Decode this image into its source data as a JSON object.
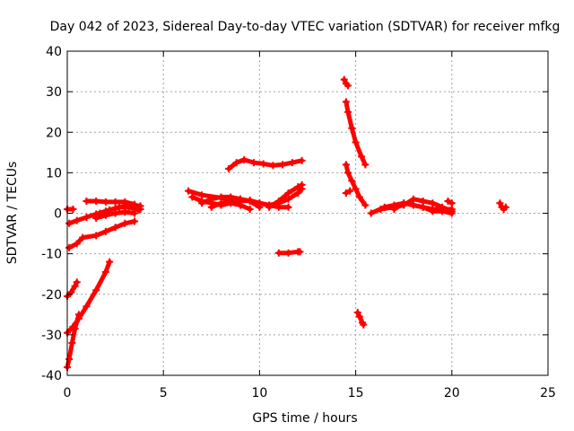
{
  "chart_data": {
    "type": "scatter",
    "title": "Day 042 of 2023, Sidereal Day-to-day VTEC variation (SDTVAR) for receiver mfkg",
    "xlabel": "GPS time / hours",
    "ylabel": "SDTVAR / TECUs",
    "xlim": [
      0,
      25
    ],
    "ylim": [
      -40,
      40
    ],
    "xticks": [
      0,
      5,
      10,
      15,
      20,
      25
    ],
    "yticks": [
      -40,
      -30,
      -20,
      -10,
      0,
      10,
      20,
      30,
      40
    ],
    "grid": true,
    "marker_color": "#ff0000",
    "series": [
      {
        "name": "s1",
        "points": [
          [
            0.0,
            1.0
          ],
          [
            0.3,
            1.0
          ]
        ]
      },
      {
        "name": "s2",
        "points": [
          [
            0.1,
            -2.5
          ],
          [
            0.5,
            -1.8
          ],
          [
            1.0,
            -1.0
          ],
          [
            1.5,
            -0.2
          ],
          [
            2.0,
            0.5
          ],
          [
            2.5,
            1.2
          ],
          [
            3.0,
            1.8
          ],
          [
            3.5,
            2.0
          ],
          [
            3.8,
            1.8
          ]
        ]
      },
      {
        "name": "s3",
        "points": [
          [
            1.0,
            3.0
          ],
          [
            1.5,
            3.0
          ],
          [
            2.0,
            2.8
          ],
          [
            2.5,
            2.8
          ],
          [
            3.0,
            2.8
          ],
          [
            3.5,
            2.2
          ],
          [
            3.8,
            1.0
          ]
        ]
      },
      {
        "name": "s4",
        "points": [
          [
            1.7,
            0.0
          ],
          [
            2.2,
            0.8
          ],
          [
            2.7,
            1.5
          ],
          [
            3.2,
            1.5
          ],
          [
            3.7,
            0.8
          ]
        ]
      },
      {
        "name": "s5",
        "points": [
          [
            1.5,
            -1.2
          ],
          [
            2.0,
            -0.5
          ],
          [
            2.5,
            0.0
          ],
          [
            3.0,
            0.3
          ],
          [
            3.5,
            0.0
          ]
        ]
      },
      {
        "name": "s6",
        "points": [
          [
            0.1,
            -8.5
          ],
          [
            0.5,
            -7.5
          ],
          [
            0.8,
            -6.0
          ],
          [
            1.5,
            -5.5
          ],
          [
            2.0,
            -4.5
          ],
          [
            2.5,
            -3.5
          ],
          [
            3.0,
            -2.5
          ],
          [
            3.5,
            -2.0
          ]
        ]
      },
      {
        "name": "s7",
        "points": [
          [
            0.0,
            -20.5
          ],
          [
            0.2,
            -19.5
          ],
          [
            0.4,
            -18.0
          ],
          [
            0.5,
            -17.0
          ]
        ]
      },
      {
        "name": "s8",
        "points": [
          [
            0.0,
            -29.5
          ],
          [
            0.3,
            -28.0
          ],
          [
            0.6,
            -26.0
          ],
          [
            1.0,
            -23.0
          ],
          [
            1.5,
            -19.0
          ],
          [
            2.0,
            -14.5
          ],
          [
            2.2,
            -12.0
          ]
        ]
      },
      {
        "name": "s9",
        "points": [
          [
            0.0,
            -38.0
          ],
          [
            0.1,
            -36.0
          ],
          [
            0.25,
            -32.0
          ],
          [
            0.4,
            -28.5
          ],
          [
            0.6,
            -25.0
          ]
        ]
      },
      {
        "name": "s10",
        "points": [
          [
            6.3,
            5.5
          ],
          [
            7.0,
            4.5
          ],
          [
            8.0,
            3.8
          ],
          [
            9.0,
            3.5
          ],
          [
            10.0,
            2.5
          ],
          [
            10.5,
            2.0
          ],
          [
            11.0,
            1.5
          ],
          [
            11.5,
            1.5
          ]
        ]
      },
      {
        "name": "s11",
        "points": [
          [
            6.5,
            4.0
          ],
          [
            7.0,
            3.0
          ],
          [
            7.5,
            2.5
          ],
          [
            8.0,
            2.0
          ],
          [
            8.5,
            2.5
          ],
          [
            9.0,
            2.0
          ],
          [
            9.5,
            1.0
          ]
        ]
      },
      {
        "name": "s12",
        "points": [
          [
            7.0,
            2.5
          ],
          [
            7.5,
            3.5
          ],
          [
            8.0,
            4.0
          ],
          [
            8.5,
            4.0
          ],
          [
            9.0,
            3.5
          ],
          [
            9.5,
            3.0
          ],
          [
            10.0,
            1.5
          ]
        ]
      },
      {
        "name": "s13",
        "points": [
          [
            7.5,
            1.5
          ],
          [
            8.0,
            2.5
          ],
          [
            8.5,
            3.0
          ],
          [
            9.0,
            3.0
          ],
          [
            9.5,
            3.2
          ],
          [
            10.0,
            2.5
          ],
          [
            10.5,
            2.0
          ],
          [
            11.0,
            2.5
          ],
          [
            11.5,
            3.5
          ],
          [
            12.0,
            5.0
          ],
          [
            12.2,
            6.0
          ]
        ]
      },
      {
        "name": "s14",
        "points": [
          [
            10.5,
            1.5
          ],
          [
            11.0,
            3.0
          ],
          [
            11.5,
            5.0
          ],
          [
            12.0,
            6.5
          ],
          [
            12.2,
            7.0
          ]
        ]
      },
      {
        "name": "s15",
        "points": [
          [
            8.4,
            11.0
          ],
          [
            8.8,
            12.5
          ],
          [
            9.2,
            13.2
          ],
          [
            9.7,
            12.5
          ],
          [
            10.2,
            12.2
          ],
          [
            10.7,
            11.8
          ],
          [
            11.2,
            12.0
          ],
          [
            11.7,
            12.5
          ],
          [
            12.2,
            13.0
          ]
        ]
      },
      {
        "name": "s16",
        "points": [
          [
            11.0,
            -9.8
          ],
          [
            11.5,
            -9.8
          ],
          [
            12.0,
            -9.5
          ],
          [
            12.1,
            -9.5
          ]
        ]
      },
      {
        "name": "s17",
        "points": [
          [
            14.4,
            33.0
          ],
          [
            14.5,
            32.0
          ],
          [
            14.6,
            31.5
          ]
        ]
      },
      {
        "name": "s18",
        "points": [
          [
            14.5,
            27.5
          ],
          [
            14.6,
            25.0
          ],
          [
            14.8,
            21.0
          ],
          [
            15.0,
            17.5
          ],
          [
            15.3,
            14.0
          ],
          [
            15.5,
            12.0
          ]
        ]
      },
      {
        "name": "s19",
        "points": [
          [
            14.5,
            12.0
          ],
          [
            14.6,
            10.0
          ],
          [
            14.8,
            8.0
          ],
          [
            15.0,
            6.0
          ],
          [
            15.2,
            4.0
          ],
          [
            15.5,
            2.0
          ]
        ]
      },
      {
        "name": "s20",
        "points": [
          [
            14.5,
            5.0
          ],
          [
            14.7,
            5.5
          ]
        ]
      },
      {
        "name": "s21",
        "points": [
          [
            15.1,
            -24.5
          ],
          [
            15.2,
            -25.5
          ],
          [
            15.35,
            -27.0
          ],
          [
            15.4,
            -27.5
          ]
        ]
      },
      {
        "name": "s22",
        "points": [
          [
            15.8,
            0.0
          ],
          [
            16.5,
            1.5
          ],
          [
            17.0,
            2.0
          ],
          [
            17.5,
            2.5
          ],
          [
            18.0,
            2.0
          ],
          [
            18.5,
            1.5
          ],
          [
            19.0,
            1.0
          ],
          [
            19.5,
            1.0
          ],
          [
            20.0,
            1.0
          ]
        ]
      },
      {
        "name": "s23",
        "points": [
          [
            16.3,
            1.0
          ],
          [
            17.0,
            1.5
          ],
          [
            17.5,
            2.0
          ],
          [
            18.0,
            3.5
          ],
          [
            18.5,
            3.0
          ],
          [
            19.0,
            2.5
          ],
          [
            19.5,
            1.5
          ],
          [
            20.0,
            0.5
          ]
        ]
      },
      {
        "name": "s24",
        "points": [
          [
            17.0,
            1.0
          ],
          [
            17.5,
            2.5
          ],
          [
            18.0,
            2.0
          ],
          [
            18.5,
            1.5
          ],
          [
            19.0,
            0.5
          ],
          [
            19.5,
            0.5
          ],
          [
            20.0,
            0.0
          ]
        ]
      },
      {
        "name": "s25",
        "points": [
          [
            19.8,
            3.0
          ],
          [
            20.0,
            2.5
          ]
        ]
      },
      {
        "name": "s26",
        "points": [
          [
            22.5,
            2.5
          ],
          [
            22.6,
            1.5
          ],
          [
            22.7,
            1.0
          ],
          [
            22.8,
            1.5
          ]
        ]
      }
    ]
  }
}
